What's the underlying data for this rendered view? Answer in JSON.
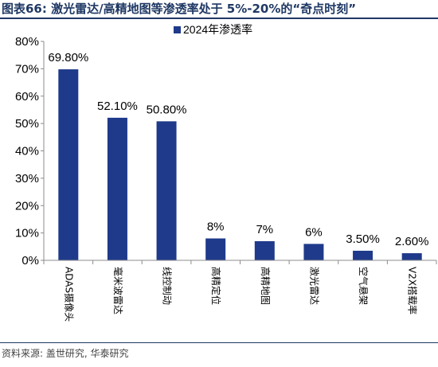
{
  "header": {
    "title": "图表66:  激光雷达/高精地图等渗透率处于 5%-20%的“奇点时刻”"
  },
  "footer": {
    "source": "资料来源: 盖世研究, 华泰研究"
  },
  "colors": {
    "bar": "#1f3a8a",
    "header": "#1f3864",
    "axis": "#8c8c8c"
  },
  "chart_data": {
    "type": "bar",
    "categories": [
      "ADAS摄像头",
      "毫米波雷达",
      "线控制动",
      "高精定位",
      "高精地图",
      "激光雷达",
      "空气悬架",
      "V2X搭载率"
    ],
    "series": [
      {
        "name": "2024年渗透率",
        "values": [
          69.8,
          52.1,
          50.8,
          8,
          7,
          6,
          3.5,
          2.6
        ],
        "data_labels": [
          "69.80%",
          "52.10%",
          "50.80%",
          "8%",
          "7%",
          "6%",
          "3.50%",
          "2.60%"
        ]
      }
    ],
    "ylim": [
      0,
      80
    ],
    "yticks": [
      0,
      10,
      20,
      30,
      40,
      50,
      60,
      70,
      80
    ],
    "ytick_labels": [
      "0%",
      "10%",
      "20%",
      "30%",
      "40%",
      "50%",
      "60%",
      "70%",
      "80%"
    ],
    "grid": false,
    "legend_position": "top-center"
  }
}
